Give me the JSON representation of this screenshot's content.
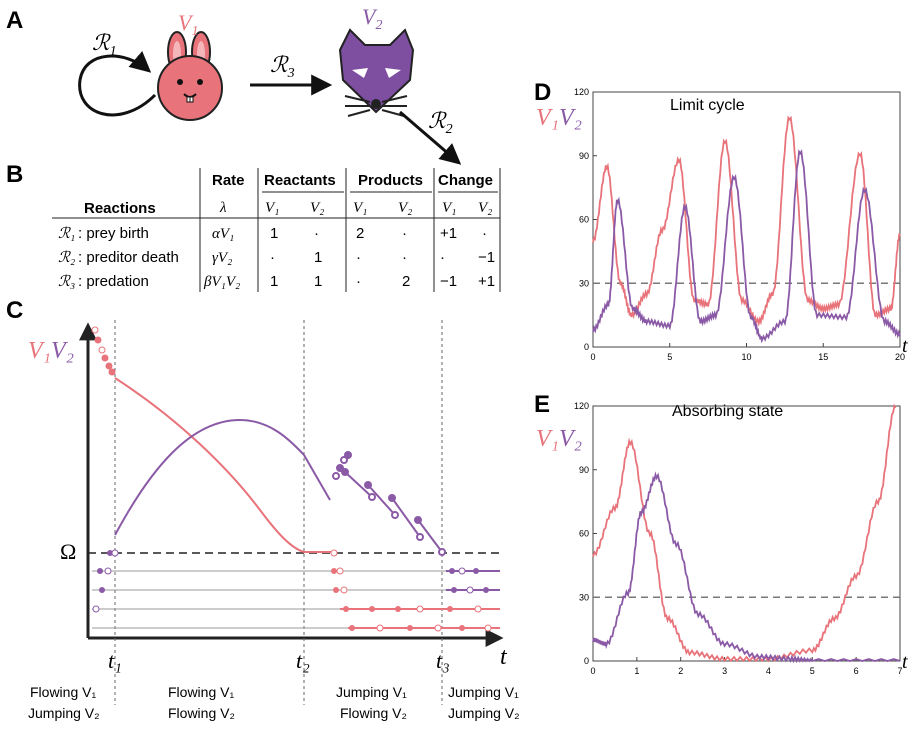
{
  "colors": {
    "v1": "#e8737a",
    "v2": "#8a5aa6",
    "axis": "#222222",
    "dash": "#666666",
    "grid": "#999999"
  },
  "panelA": {
    "label": "A",
    "r1": "ℛ",
    "r1sub": "1",
    "r2": "ℛ",
    "r2sub": "2",
    "r3": "ℛ",
    "r3sub": "3",
    "v1": "V",
    "v1sub": "1",
    "v2": "V",
    "v2sub": "2",
    "icons": [
      "rabbit-icon",
      "fox-icon"
    ]
  },
  "panelB": {
    "label": "B",
    "headers": {
      "reactions": "Reactions",
      "rate": "Rate",
      "rate_sym": "λ⃗",
      "reactants": "Reactants",
      "products": "Products",
      "change": "Change"
    },
    "subheaders": [
      "V₁",
      "V₂",
      "V₁",
      "V₂",
      "V₁",
      "V₂"
    ],
    "rows": [
      {
        "rsym": "ℛ₁",
        "name": ": prey birth",
        "rate": "αV₁",
        "reac1": "1",
        "reac2": "·",
        "prod1": "2",
        "prod2": "·",
        "chg1": "+1",
        "chg2": "·"
      },
      {
        "rsym": "ℛ₂",
        "name": ": preditor death",
        "rate": "γV₂",
        "reac1": "·",
        "reac2": "1",
        "prod1": "·",
        "prod2": "·",
        "chg1": "·",
        "chg2": "−1"
      },
      {
        "rsym": "ℛ₃",
        "name": ": predation",
        "rate": "βV₁V₂",
        "reac1": "1",
        "reac2": "1",
        "prod1": "·",
        "prod2": "2",
        "chg1": "−1",
        "chg2": "+1"
      }
    ]
  },
  "panelC": {
    "label": "C",
    "ylabel1": "V₁",
    "ylabel2": "V₂",
    "omega": "Ω",
    "xaxis": "t",
    "ticks": [
      "t₁",
      "t₂",
      "t₃"
    ],
    "phases": [
      {
        "line1": "Flowing V₁",
        "line2": "Jumping V₂"
      },
      {
        "line1": "Flowing V₁",
        "line2": "Flowing V₂"
      },
      {
        "line1": "Jumping V₁",
        "line2": "Flowing V₂"
      },
      {
        "line1": "Jumping V₁",
        "line2": "Jumping V₂"
      }
    ]
  },
  "panelD": {
    "label": "D",
    "title": "Limit cycle",
    "ylabel1": "V₁",
    "ylabel2": "V₂",
    "xaxis": "t"
  },
  "panelE": {
    "label": "E",
    "title": "Absorbing state",
    "ylabel1": "V₁",
    "ylabel2": "V₂",
    "xaxis": "t"
  },
  "chart_data": [
    {
      "type": "line",
      "title": "Limit cycle",
      "xlabel": "t",
      "ylabel": "V1 V2",
      "xlim": [
        0,
        20
      ],
      "ylim": [
        0,
        120
      ],
      "xticks": [
        "0",
        "5",
        "10",
        "15",
        "20"
      ],
      "yticks": [
        "0",
        "30",
        "60",
        "90",
        "120"
      ],
      "threshold": 30,
      "series": [
        {
          "name": "V1",
          "x": [
            0,
            0.9,
            1.8,
            2.5,
            3.5,
            4.5,
            5.6,
            6.6,
            7.5,
            8.6,
            9.7,
            10.8,
            11.7,
            12.8,
            14.0,
            15.0,
            16.0,
            17.4,
            18.4,
            19.4,
            20.0
          ],
          "y": [
            50,
            85,
            30,
            15,
            25,
            55,
            88,
            22,
            20,
            97,
            22,
            12,
            25,
            108,
            22,
            18,
            20,
            91,
            15,
            18,
            53
          ]
        },
        {
          "name": "V2",
          "x": [
            0,
            1.0,
            1.6,
            2.6,
            3.5,
            5.0,
            6.0,
            7.0,
            8.0,
            9.2,
            10.3,
            11.0,
            12.5,
            13.5,
            14.6,
            16.5,
            17.7,
            19.0,
            20.0
          ],
          "y": [
            8,
            20,
            69,
            18,
            12,
            10,
            66,
            12,
            15,
            80,
            14,
            4,
            12,
            92,
            15,
            14,
            74,
            12,
            6
          ]
        }
      ]
    },
    {
      "type": "line",
      "title": "Absorbing state",
      "xlabel": "t",
      "ylabel": "V1 V2",
      "xlim": [
        0,
        7
      ],
      "ylim": [
        0,
        120
      ],
      "xticks": [
        "0",
        "1",
        "2",
        "3",
        "4",
        "5",
        "6",
        "7"
      ],
      "yticks": [
        "0",
        "30",
        "60",
        "90",
        "120"
      ],
      "threshold": 30,
      "series": [
        {
          "name": "V1",
          "x": [
            0,
            0.5,
            0.85,
            1.3,
            1.7,
            2.2,
            3.0,
            4.0,
            5.0,
            5.5,
            6.0,
            6.5,
            6.9
          ],
          "y": [
            50,
            72,
            103,
            60,
            20,
            4,
            1,
            1,
            5,
            20,
            40,
            75,
            120
          ]
        },
        {
          "name": "V2",
          "x": [
            0,
            0.3,
            0.8,
            1.1,
            1.45,
            1.9,
            2.4,
            3.0,
            3.8,
            4.5,
            5.0,
            7.0
          ],
          "y": [
            10,
            8,
            32,
            70,
            87,
            55,
            22,
            8,
            2,
            1,
            0,
            0
          ]
        }
      ]
    }
  ]
}
